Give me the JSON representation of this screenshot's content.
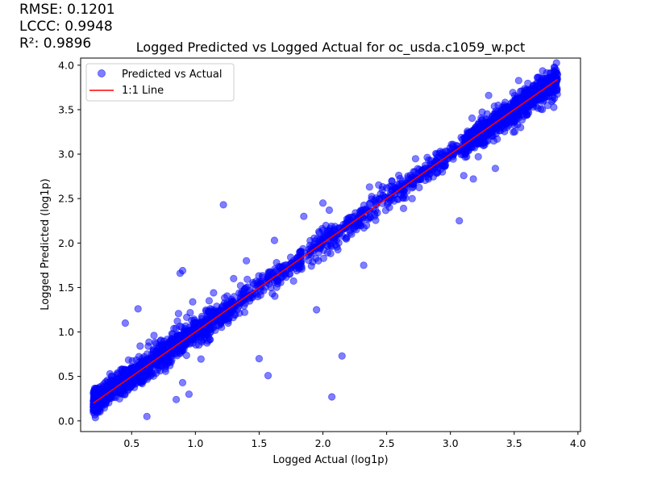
{
  "metrics": {
    "rmse": "RMSE: 0.1201",
    "lccc": "LCCC: 0.9948",
    "r2": "R²: 0.9896"
  },
  "chart_data": {
    "type": "scatter",
    "title": "Logged Predicted vs Logged Actual for oc_usda.c1059_w.pct",
    "xlabel": "Logged Actual (log1p)",
    "ylabel": "Logged Predicted (log1p)",
    "xlim": [
      0.1,
      4.02
    ],
    "ylim": [
      -0.12,
      4.08
    ],
    "xticks": [
      "0.5",
      "1.0",
      "1.5",
      "2.0",
      "2.5",
      "3.0",
      "3.5",
      "4.0"
    ],
    "yticks": [
      "0.0",
      "0.5",
      "1.0",
      "1.5",
      "2.0",
      "2.5",
      "3.0",
      "3.5",
      "4.0"
    ],
    "grid": false,
    "legend_position": "top-left",
    "series": [
      {
        "name": "Predicted vs Actual",
        "kind": "scatter",
        "color": "#0000ff",
        "x_range": [
          0.2,
          3.84
        ],
        "n_points": 2600,
        "outliers": [
          [
            0.45,
            1.1
          ],
          [
            0.55,
            1.26
          ],
          [
            0.88,
            1.66
          ],
          [
            0.9,
            1.69
          ],
          [
            1.12,
            1.0
          ],
          [
            1.22,
            2.43
          ],
          [
            1.4,
            1.8
          ],
          [
            1.57,
            0.51
          ],
          [
            1.62,
            2.03
          ],
          [
            2.07,
            0.27
          ],
          [
            2.15,
            0.73
          ],
          [
            2.32,
            1.75
          ],
          [
            2.5,
            2.62
          ],
          [
            3.07,
            2.25
          ],
          [
            3.18,
            2.72
          ],
          [
            2.9,
            2.8
          ],
          [
            0.95,
            0.3
          ],
          [
            1.85,
            2.3
          ],
          [
            2.05,
            2.37
          ],
          [
            3.3,
            3.66
          ],
          [
            0.62,
            0.05
          ],
          [
            0.9,
            0.43
          ],
          [
            1.5,
            0.7
          ],
          [
            2.0,
            2.45
          ],
          [
            1.95,
            1.25
          ],
          [
            2.7,
            2.5
          ],
          [
            3.55,
            3.3
          ],
          [
            0.85,
            0.24
          ],
          [
            1.3,
            1.6
          ],
          [
            1.1,
            0.9
          ]
        ]
      },
      {
        "name": "1:1 Line",
        "kind": "line",
        "color": "#ff0000",
        "x": [
          0.2,
          3.84
        ],
        "y": [
          0.2,
          3.84
        ]
      }
    ]
  }
}
